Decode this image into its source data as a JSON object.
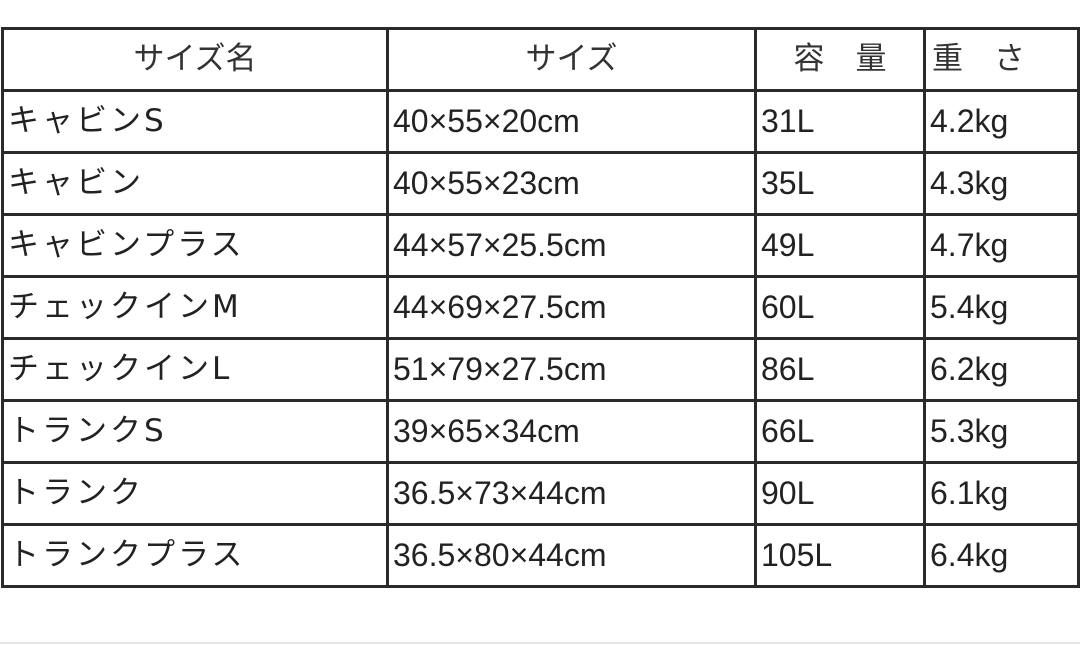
{
  "table": {
    "headers": [
      "サイズ名",
      "サイズ",
      "容　量",
      "重　さ"
    ],
    "rows": [
      [
        "キャビンS",
        "40×55×20cm",
        "31L",
        "4.2kg"
      ],
      [
        "キャビン",
        "40×55×23cm",
        "35L",
        "4.3kg"
      ],
      [
        "キャビンプラス",
        "44×57×25.5cm",
        "49L",
        "4.7kg"
      ],
      [
        "チェックインM",
        "44×69×27.5cm",
        "60L",
        "5.4kg"
      ],
      [
        "チェックインL",
        "51×79×27.5cm",
        "86L",
        "6.2kg"
      ],
      [
        "トランクS",
        "39×65×34cm",
        "66L",
        "5.3kg"
      ],
      [
        "トランク",
        "36.5×73×44cm",
        "90L",
        "6.1kg"
      ],
      [
        "トランクプラス",
        "36.5×80×44cm",
        "105L",
        "6.4kg"
      ]
    ]
  }
}
